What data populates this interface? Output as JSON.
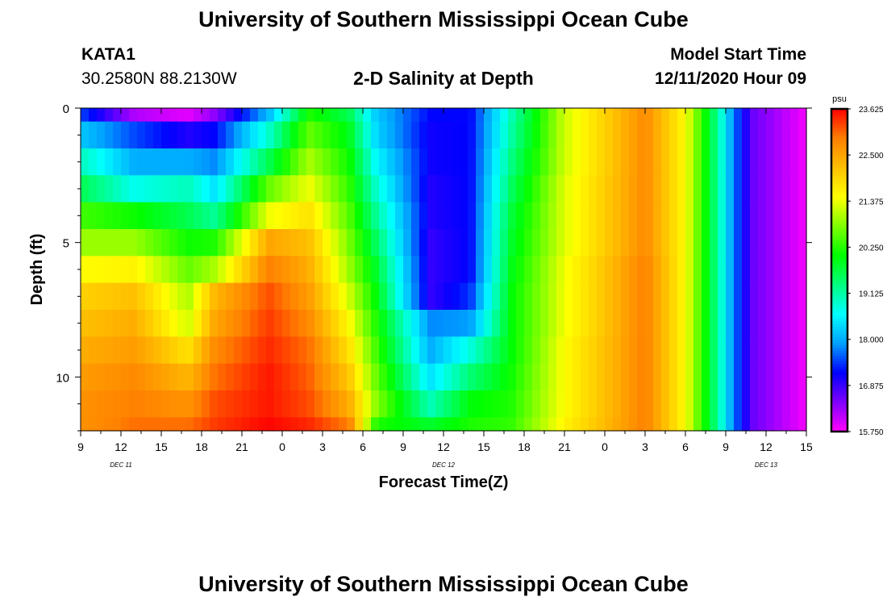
{
  "header": {
    "title_top": "University of Southern Mississippi Ocean Cube",
    "title_bottom": "University of Southern Mississippi Ocean Cube",
    "station_id": "KATA1",
    "station_coords": "30.2580N 88.2130W",
    "plot_title": "2-D Salinity at Depth",
    "model_start_label": "Model Start Time",
    "model_start_value": "12/11/2020 Hour 09"
  },
  "chart_data": {
    "type": "heatmap",
    "title": "2-D Salinity at Depth",
    "xlabel": "Forecast Time(Z)",
    "ylabel": "Depth (ft)",
    "x_tick_labels": [
      "9",
      "12",
      "15",
      "18",
      "21",
      "0",
      "3",
      "6",
      "9",
      "12",
      "15",
      "18",
      "21",
      "0",
      "3",
      "6",
      "9",
      "12",
      "15"
    ],
    "x_day_labels": [
      "DEC 11",
      "DEC 12",
      "DEC 13"
    ],
    "y_tick_labels": [
      "0",
      "5",
      "10"
    ],
    "xlim_hours": [
      0,
      54
    ],
    "ylim": [
      0,
      12
    ],
    "colorbar": {
      "unit": "psu",
      "tick_labels": [
        "23.625",
        "22.500",
        "21.375",
        "20.250",
        "19.125",
        "18.000",
        "16.875",
        "15.750"
      ],
      "range": [
        15.75,
        23.625
      ],
      "colormap": [
        "#ff00ff",
        "#8000ff",
        "#0000ff",
        "#00a0ff",
        "#00ffff",
        "#00ff80",
        "#00ff00",
        "#80ff00",
        "#ffff00",
        "#ffc000",
        "#ff8000",
        "#ff0000"
      ]
    },
    "depth_levels": [
      0,
      1,
      2,
      3,
      4,
      5,
      6,
      7,
      8,
      9,
      10,
      11,
      12
    ],
    "columns": [
      {
        "h": 0,
        "s": [
          17.5,
          18.2,
          19.0,
          19.6,
          20.4,
          20.9,
          21.5,
          22.0,
          22.2,
          22.4,
          22.6,
          22.7,
          22.7
        ]
      },
      {
        "h": 4,
        "s": [
          16.2,
          17.5,
          18.0,
          18.7,
          20.1,
          20.9,
          21.6,
          22.2,
          22.4,
          22.6,
          22.8,
          22.9,
          23.0
        ]
      },
      {
        "h": 8,
        "s": [
          15.9,
          17.0,
          18.0,
          19.0,
          19.6,
          20.1,
          20.6,
          21.0,
          21.2,
          21.8,
          22.3,
          22.7,
          23.0
        ]
      },
      {
        "h": 10,
        "s": [
          16.4,
          17.2,
          17.8,
          18.4,
          19.2,
          20.2,
          21.0,
          22.3,
          22.5,
          22.8,
          23.0,
          23.2,
          23.3
        ]
      },
      {
        "h": 14,
        "s": [
          18.1,
          18.9,
          19.6,
          20.6,
          21.4,
          22.5,
          22.9,
          23.2,
          23.3,
          23.4,
          23.5,
          23.5,
          23.6
        ]
      },
      {
        "h": 17,
        "s": [
          20.2,
          20.6,
          21.0,
          21.4,
          21.8,
          22.2,
          22.4,
          22.6,
          22.8,
          23.0,
          23.1,
          23.2,
          23.4
        ]
      },
      {
        "h": 20,
        "s": [
          19.6,
          19.9,
          20.1,
          20.3,
          20.5,
          20.7,
          20.9,
          21.2,
          21.5,
          21.8,
          22.1,
          22.4,
          22.9
        ]
      },
      {
        "h": 22,
        "s": [
          18.2,
          18.3,
          18.6,
          18.9,
          19.2,
          19.5,
          19.8,
          20.0,
          20.2,
          20.4,
          20.6,
          20.8,
          20.2
        ]
      },
      {
        "h": 26,
        "s": [
          17.2,
          17.1,
          17.1,
          17.0,
          17.0,
          16.9,
          16.9,
          16.9,
          17.8,
          18.0,
          18.4,
          19.0,
          19.8
        ]
      },
      {
        "h": 29,
        "s": [
          17.2,
          17.2,
          17.2,
          17.2,
          17.2,
          17.2,
          17.2,
          17.4,
          17.9,
          18.8,
          19.4,
          20.0,
          20.2
        ]
      },
      {
        "h": 32,
        "s": [
          19.0,
          19.1,
          19.3,
          19.5,
          19.7,
          19.8,
          19.9,
          20.0,
          20.0,
          20.0,
          20.1,
          20.2,
          20.3
        ]
      },
      {
        "h": 36,
        "s": [
          21.2,
          21.2,
          21.2,
          21.3,
          21.3,
          21.3,
          21.4,
          21.4,
          21.4,
          21.5,
          21.5,
          21.5,
          21.6
        ]
      },
      {
        "h": 42,
        "s": [
          22.8,
          22.8,
          22.8,
          22.8,
          22.8,
          22.8,
          22.9,
          22.9,
          22.9,
          22.9,
          22.9,
          22.9,
          22.9
        ]
      },
      {
        "h": 45,
        "s": [
          21.5,
          21.5,
          21.5,
          21.5,
          21.5,
          21.5,
          21.5,
          21.5,
          21.5,
          21.5,
          21.5,
          21.5,
          21.5
        ]
      },
      {
        "h": 47.5,
        "s": [
          19.1,
          19.1,
          19.1,
          19.1,
          19.1,
          19.1,
          19.1,
          19.1,
          19.1,
          19.1,
          19.1,
          19.1,
          19.1
        ]
      },
      {
        "h": 48.5,
        "s": [
          17.8,
          17.8,
          17.8,
          17.8,
          17.8,
          17.8,
          17.8,
          17.8,
          17.8,
          17.8,
          17.8,
          17.8,
          17.8
        ]
      },
      {
        "h": 50,
        "s": [
          16.6,
          16.6,
          16.6,
          16.6,
          16.6,
          16.6,
          16.6,
          16.6,
          16.6,
          16.6,
          16.6,
          16.6,
          16.6
        ]
      },
      {
        "h": 54,
        "s": [
          15.8,
          15.8,
          15.8,
          15.8,
          15.8,
          15.8,
          15.8,
          15.8,
          15.8,
          15.8,
          15.8,
          15.8,
          15.8
        ]
      }
    ]
  }
}
